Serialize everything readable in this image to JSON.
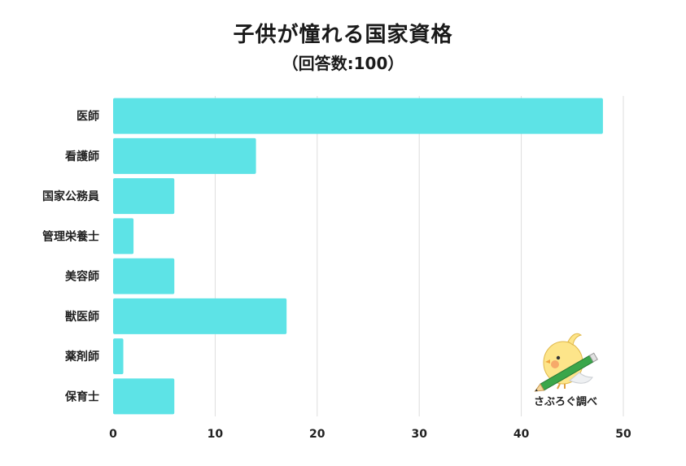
{
  "chart_data": {
    "type": "bar",
    "orientation": "horizontal",
    "title": "子供が憧れる国家資格",
    "subtitle": "（回答数:100）",
    "categories": [
      "医師",
      "看護師",
      "国家公務員",
      "管理栄養士",
      "美容師",
      "獣医師",
      "薬剤師",
      "保育士"
    ],
    "values": [
      48,
      14,
      6,
      2,
      6,
      17,
      1,
      6
    ],
    "xlim": [
      0,
      50
    ],
    "xticks": [
      0,
      10,
      20,
      30,
      40,
      50
    ],
    "grid": true,
    "bar_color": "#5de3e6",
    "grid_color": "#dddddd"
  },
  "watermark": {
    "text": "さぶろぐ調べ",
    "icon": "bird-with-pencil-icon"
  }
}
